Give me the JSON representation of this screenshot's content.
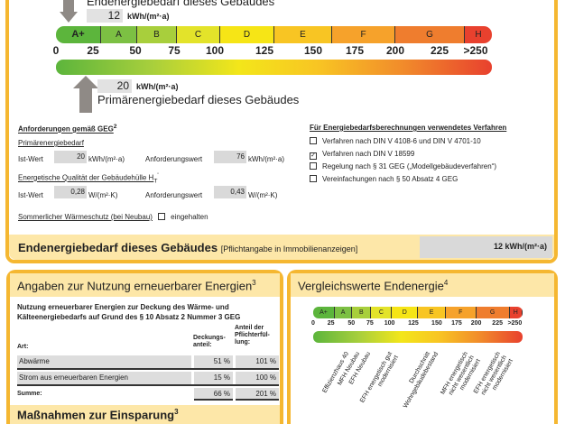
{
  "top": {
    "end_label": "Endenergiebedarf dieses Gebäudes",
    "end_value": "12",
    "unit": "kWh/(m²·a)",
    "prim_value": "20",
    "prim_label": "Primärenergiebedarf dieses Gebäudes",
    "classes": [
      {
        "label": "A+",
        "color": "#5cb53c"
      },
      {
        "label": "A",
        "color": "#7cc043"
      },
      {
        "label": "B",
        "color": "#a8cf3c"
      },
      {
        "label": "C",
        "color": "#e3e32a"
      },
      {
        "label": "D",
        "color": "#f6e516"
      },
      {
        "label": "E",
        "color": "#f8c523"
      },
      {
        "label": "F",
        "color": "#f6a22b"
      },
      {
        "label": "G",
        "color": "#ef7d2e"
      },
      {
        "label": "H",
        "color": "#e8412e"
      }
    ],
    "ticks": [
      "0",
      "25",
      "50",
      "75",
      "100",
      "125",
      "150",
      "175",
      "200",
      "225",
      ">250"
    ],
    "end_value_number": 12,
    "prim_value_number": 20
  },
  "requirements": {
    "title": "Anforderungen gemäß GEG",
    "title_sup": "2",
    "prim_label": "Primärenergiebedarf",
    "ist_label": "Ist-Wert",
    "prim_ist": "20",
    "prim_unit": "kWh/(m²·a)",
    "anf_label": "Anforderungswert",
    "prim_anf": "76",
    "ht_label": "Energetische Qualität der Gebäudehülle H",
    "ht_sub": "T",
    "ht_sup": "'",
    "ht_ist": "0,28",
    "ht_unit": "W/(m²·K)",
    "ht_anf": "0,43",
    "summer_label": "Sommerlicher Wärmeschutz (bei Neubau)",
    "summer_value": "eingehalten",
    "summer_checked": false
  },
  "methods": {
    "title": "Für Energiebedarfsberechnungen verwendetes Verfahren",
    "items": [
      {
        "label": "Verfahren nach DIN V 4108-6 und DIN V 4701-10",
        "checked": false,
        "mark": ""
      },
      {
        "label": "Verfahren nach DIN V 18599",
        "checked": true,
        "mark": "✓"
      },
      {
        "label": "Regelung nach § 31 GEG („Modellgebäudeverfahren“)",
        "checked": false,
        "mark": ""
      },
      {
        "label": "Vereinfachungen nach § 50 Absatz 4 GEG",
        "checked": false,
        "mark": ""
      }
    ]
  },
  "endbar": {
    "title": "Endenergiebedarf dieses Gebäudes",
    "note": "[Pflichtangabe in Immobilienanzeigen]",
    "value": "12 kWh/(m²·a)"
  },
  "renew": {
    "title": "Angaben zur Nutzung erneuerbarer Energien",
    "title_sup": "3",
    "intro": "Nutzung erneuerbarer Energien zur Deckung des Wärme- und Kälteenergiebedarfs auf Grund des § 10 Absatz 2 Nummer 3 GEG",
    "col_art": "Art:",
    "col_deck": "Deckungs-anteil:",
    "col_pflicht": "Anteil der Pflichterfül-lung:",
    "rows": [
      {
        "art": "Abwärme",
        "deck": "51 %",
        "pflicht": "101 %"
      },
      {
        "art": "Strom aus erneuerbaren Energien",
        "deck": "15 %",
        "pflicht": "100 %"
      }
    ],
    "sum_label": "Summe:",
    "sum_deck": "66 %",
    "sum_pflicht": "201 %"
  },
  "measures": {
    "title": "Maßnahmen zur Einsparung",
    "title_sup": "3"
  },
  "compare": {
    "title": "Vergleichswerte Endenergie",
    "title_sup": "4",
    "refs": [
      "Effizienzhaus 40",
      "MFH Neubau",
      "EFH Neubau",
      "EFH energetisch gut modernisiert",
      "Durchschnitt Wohngebäudebestand",
      "MFH energetisch nicht wesentlich modernisiert",
      "EFH energetisch nicht wesentlich modernisiert"
    ]
  }
}
